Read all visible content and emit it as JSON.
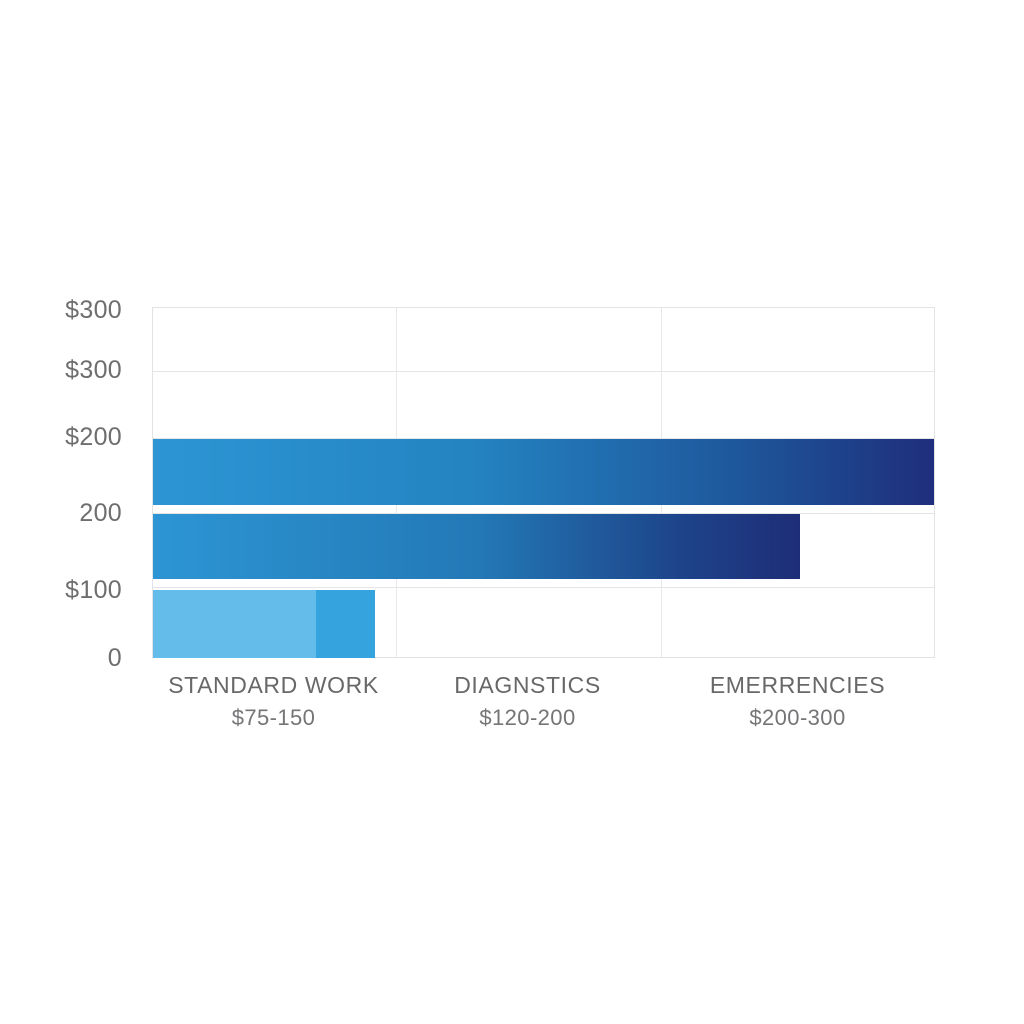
{
  "background": "#ffffff",
  "chart_data": {
    "type": "bar",
    "orientation": "horizontal",
    "title": "",
    "grid": true,
    "legend": "none",
    "value_axis_max_label": "$300",
    "y_tick_labels": [
      "$300",
      "$300",
      "$200",
      "200",
      "$100",
      "0"
    ],
    "categories": [
      {
        "label": "STANDARD WORK",
        "range": "$75-150"
      },
      {
        "label": "DIAGNSTICS",
        "range": "$120-200"
      },
      {
        "label": "EMERRENCIES",
        "range": "$200-300"
      }
    ],
    "bars": [
      {
        "name": "bar-top",
        "length_pct": 100,
        "value_usd_estimate": 300,
        "stops": [
          {
            "color": "#2d95d4",
            "pos": 0
          },
          {
            "color": "#2484c2",
            "pos": 40
          },
          {
            "color": "#1e579b",
            "pos": 75
          },
          {
            "color": "#1f2e7c",
            "pos": 100
          }
        ]
      },
      {
        "name": "bar-middle",
        "length_pct": 82.9,
        "value_usd_estimate": 250,
        "stops": [
          {
            "color": "#2d95d4",
            "pos": 0
          },
          {
            "color": "#2379b6",
            "pos": 50
          },
          {
            "color": "#1d4389",
            "pos": 82
          },
          {
            "color": "#1f2d78",
            "pos": 100
          }
        ]
      },
      {
        "name": "bar-bottom",
        "length_pct": 28.4,
        "value_usd_estimate": 85,
        "stops": [
          {
            "color": "#63bce9",
            "pos": 0
          },
          {
            "color": "#63bce9",
            "pos": 73.4
          },
          {
            "color": "#35a3dd",
            "pos": 73.4
          },
          {
            "color": "#35a3dd",
            "pos": 100
          }
        ]
      }
    ],
    "colors": {
      "bar_blue": "#2d95d4",
      "bar_navy": "#1f2e7c",
      "bar_light_blue": "#63bce9",
      "bar_medium_blue": "#35a3dd",
      "gridline": "#e5e5e8",
      "label_text": "#6a6a6c"
    }
  }
}
